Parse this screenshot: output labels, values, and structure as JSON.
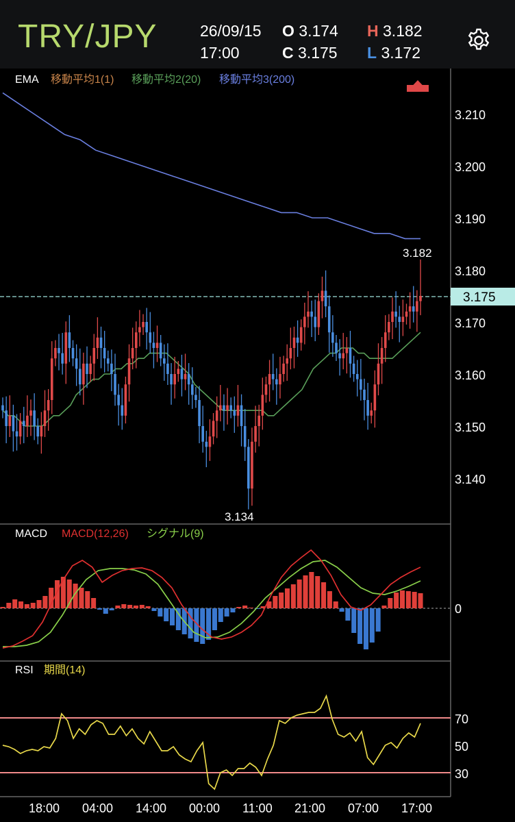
{
  "header": {
    "pair": "TRY/JPY",
    "date": "26/09/15",
    "time": "17:00",
    "open_key": "O",
    "open": "3.174",
    "close_key": "C",
    "close": "3.175",
    "high_key": "H",
    "high": "3.182",
    "low_key": "L",
    "low": "3.172",
    "colors": {
      "pair": "#b7d96d",
      "high_key": "#e8665a",
      "low_key": "#4a90e2"
    },
    "settings_icon": "gear-icon"
  },
  "ema_panel": {
    "label": "EMA",
    "legend": [
      {
        "text": "移動平均1(1)",
        "color": "#c8844a"
      },
      {
        "text": "移動平均2(20)",
        "color": "#5aa05a"
      },
      {
        "text": "移動平均3(200)",
        "color": "#6a7fe0"
      }
    ],
    "current_price": "3.175",
    "high_label": "3.182",
    "low_label": "3.134",
    "up_icon": "up-triangle-icon",
    "y_ticks": [
      "3.210",
      "3.200",
      "3.190",
      "3.180",
      "3.170",
      "3.160",
      "3.150",
      "3.140"
    ]
  },
  "macd_panel": {
    "label": "MACD",
    "legend": [
      {
        "text": "MACD(12,26)",
        "color": "#e03030"
      },
      {
        "text": "シグナル(9)",
        "color": "#8ad04a"
      }
    ],
    "zero_label": "0"
  },
  "rsi_panel": {
    "label": "RSI",
    "legend": [
      {
        "text": "期間(14)",
        "color": "#e8d84a"
      }
    ],
    "y_ticks": [
      "70",
      "50",
      "30"
    ]
  },
  "x_axis": [
    "18:00",
    "04:00",
    "14:00",
    "00:00",
    "11:00",
    "21:00",
    "07:00",
    "17:00"
  ],
  "chart_data": [
    {
      "type": "candlestick",
      "title": "EMA",
      "ylim": [
        3.13,
        3.216
      ],
      "y_ticks": [
        3.21,
        3.2,
        3.19,
        3.18,
        3.17,
        3.16,
        3.15,
        3.14
      ],
      "closes": [
        3.153,
        3.15,
        3.152,
        3.149,
        3.148,
        3.151,
        3.15,
        3.152,
        3.153,
        3.15,
        3.148,
        3.15,
        3.153,
        3.155,
        3.163,
        3.165,
        3.164,
        3.162,
        3.168,
        3.165,
        3.163,
        3.161,
        3.158,
        3.162,
        3.16,
        3.162,
        3.165,
        3.167,
        3.165,
        3.163,
        3.162,
        3.16,
        3.156,
        3.154,
        3.152,
        3.158,
        3.163,
        3.165,
        3.168,
        3.169,
        3.17,
        3.168,
        3.166,
        3.165,
        3.166,
        3.163,
        3.162,
        3.16,
        3.158,
        3.16,
        3.161,
        3.159,
        3.16,
        3.158,
        3.156,
        3.155,
        3.15,
        3.147,
        3.146,
        3.148,
        3.151,
        3.153,
        3.154,
        3.153,
        3.154,
        3.153,
        3.152,
        3.154,
        3.15,
        3.146,
        3.138,
        3.147,
        3.15,
        3.152,
        3.156,
        3.158,
        3.16,
        3.159,
        3.158,
        3.16,
        3.162,
        3.163,
        3.165,
        3.167,
        3.166,
        3.169,
        3.171,
        3.172,
        3.171,
        3.169,
        3.174,
        3.176,
        3.173,
        3.168,
        3.166,
        3.164,
        3.163,
        3.164,
        3.165,
        3.162,
        3.16,
        3.159,
        3.157,
        3.155,
        3.152,
        3.153,
        3.158,
        3.162,
        3.165,
        3.168,
        3.17,
        3.172,
        3.171,
        3.17,
        3.171,
        3.172,
        3.173,
        3.172,
        3.174,
        3.175
      ],
      "ema2": [
        3.153,
        3.152,
        3.152,
        3.151,
        3.15,
        3.15,
        3.15,
        3.15,
        3.151,
        3.152,
        3.152,
        3.153,
        3.154,
        3.156,
        3.157,
        3.158,
        3.159,
        3.159,
        3.16,
        3.16,
        3.161,
        3.161,
        3.162,
        3.162,
        3.163,
        3.163,
        3.164,
        3.164,
        3.164,
        3.164,
        3.163,
        3.162,
        3.161,
        3.16,
        3.158,
        3.157,
        3.156,
        3.155,
        3.154,
        3.153,
        3.153,
        3.153,
        3.153,
        3.153,
        3.153,
        3.153,
        3.153,
        3.152,
        3.152,
        3.153,
        3.154,
        3.155,
        3.156,
        3.157,
        3.159,
        3.161,
        3.162,
        3.163,
        3.164,
        3.164,
        3.165,
        3.165,
        3.165,
        3.164,
        3.164,
        3.163,
        3.163,
        3.163,
        3.163,
        3.163,
        3.164,
        3.165,
        3.166,
        3.167,
        3.168
      ],
      "ema3": [
        3.214,
        3.212,
        3.21,
        3.208,
        3.206,
        3.205,
        3.203,
        3.202,
        3.201,
        3.2,
        3.199,
        3.198,
        3.197,
        3.196,
        3.195,
        3.194,
        3.193,
        3.192,
        3.191,
        3.191,
        3.19,
        3.19,
        3.189,
        3.188,
        3.187,
        3.187,
        3.186,
        3.186
      ],
      "high": 3.182,
      "low": 3.134,
      "current": 3.175
    },
    {
      "type": "bar",
      "title": "MACD",
      "histogram": [
        0.2,
        0.8,
        1.3,
        1.0,
        0.6,
        0.8,
        1.2,
        1.8,
        3.0,
        4.1,
        4.6,
        4.2,
        3.6,
        3.0,
        2.5,
        1.5,
        -0.2,
        -0.8,
        -0.3,
        0.4,
        0.6,
        0.5,
        0.4,
        0.5,
        0.3,
        -0.4,
        -1.2,
        -1.9,
        -2.5,
        -3.2,
        -3.8,
        -4.4,
        -4.9,
        -5.2,
        -4.6,
        -3.2,
        -2.0,
        -1.2,
        -0.6,
        0.2,
        0.4,
        0.1,
        -0.1,
        0.3,
        1.0,
        1.8,
        2.3,
        2.9,
        3.5,
        4.2,
        4.8,
        5.3,
        4.7,
        3.8,
        2.5,
        1.0,
        -0.5,
        -1.8,
        -3.6,
        -5.2,
        -6.0,
        -5.0,
        -3.4,
        0.4,
        1.5,
        2.3,
        2.6,
        2.5,
        2.4,
        2.2
      ],
      "macd": [
        -5.8,
        -5.5,
        -4.8,
        -4.0,
        -2.0,
        1.0,
        4.0,
        6.2,
        7.0,
        6.0,
        3.8,
        4.8,
        5.5,
        5.8,
        5.9,
        5.5,
        4.5,
        3.0,
        0.5,
        -1.5,
        -3.0,
        -4.2,
        -4.5,
        -4.2,
        -3.5,
        -2.5,
        -1.0,
        2.0,
        4.5,
        6.2,
        7.4,
        8.5,
        7.0,
        4.8,
        2.0,
        0.2,
        -0.3,
        0.5,
        2.0,
        3.5,
        4.5,
        5.3,
        6.0
      ],
      "signal": [
        -5.6,
        -5.6,
        -5.4,
        -4.9,
        -3.5,
        -1.0,
        2.0,
        4.2,
        5.5,
        5.8,
        5.8,
        5.6,
        5.0,
        3.5,
        1.0,
        -1.5,
        -3.5,
        -4.3,
        -4.2,
        -3.5,
        -2.2,
        -0.5,
        1.5,
        3.0,
        4.5,
        5.8,
        6.8,
        7.0,
        6.0,
        4.5,
        3.0,
        2.2,
        2.0,
        2.5,
        3.2,
        4.0
      ]
    },
    {
      "type": "line",
      "title": "RSI",
      "ylim": [
        10,
        100
      ],
      "y_ticks": [
        70,
        50,
        30
      ],
      "values": [
        50,
        49,
        47,
        44,
        46,
        47,
        46,
        49,
        48,
        55,
        73,
        68,
        55,
        62,
        58,
        65,
        68,
        66,
        58,
        58,
        64,
        57,
        62,
        55,
        51,
        60,
        53,
        46,
        46,
        49,
        43,
        40,
        38,
        46,
        52,
        22,
        18,
        30,
        32,
        28,
        33,
        33,
        37,
        34,
        28,
        40,
        50,
        68,
        66,
        70,
        72,
        73,
        74,
        74,
        77,
        86,
        69,
        58,
        56,
        59,
        53,
        60,
        41,
        36,
        43,
        50,
        52,
        48,
        55,
        59,
        56,
        66
      ]
    }
  ]
}
